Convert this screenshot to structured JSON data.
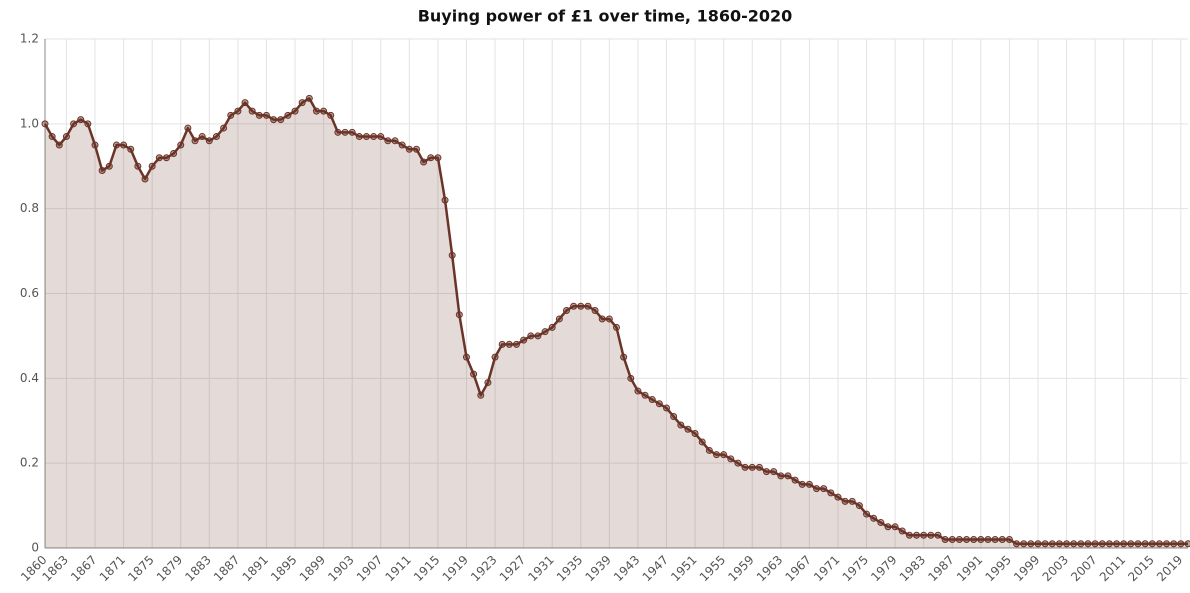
{
  "chart_data": {
    "type": "area",
    "title": "Buying power of £1 over time, 1860-2020",
    "x": [
      1860,
      1861,
      1862,
      1863,
      1864,
      1865,
      1866,
      1867,
      1868,
      1869,
      1870,
      1871,
      1872,
      1873,
      1874,
      1875,
      1876,
      1877,
      1878,
      1879,
      1880,
      1881,
      1882,
      1883,
      1884,
      1885,
      1886,
      1887,
      1888,
      1889,
      1890,
      1891,
      1892,
      1893,
      1894,
      1895,
      1896,
      1897,
      1898,
      1899,
      1900,
      1901,
      1902,
      1903,
      1904,
      1905,
      1906,
      1907,
      1908,
      1909,
      1910,
      1911,
      1912,
      1913,
      1914,
      1915,
      1916,
      1917,
      1918,
      1919,
      1920,
      1921,
      1922,
      1923,
      1924,
      1925,
      1926,
      1927,
      1928,
      1929,
      1930,
      1931,
      1932,
      1933,
      1934,
      1935,
      1936,
      1937,
      1938,
      1939,
      1940,
      1941,
      1942,
      1943,
      1944,
      1945,
      1946,
      1947,
      1948,
      1949,
      1950,
      1951,
      1952,
      1953,
      1954,
      1955,
      1956,
      1957,
      1958,
      1959,
      1960,
      1961,
      1962,
      1963,
      1964,
      1965,
      1966,
      1967,
      1968,
      1969,
      1970,
      1971,
      1972,
      1973,
      1974,
      1975,
      1976,
      1977,
      1978,
      1979,
      1980,
      1981,
      1982,
      1983,
      1984,
      1985,
      1986,
      1987,
      1988,
      1989,
      1990,
      1991,
      1992,
      1993,
      1994,
      1995,
      1996,
      1997,
      1998,
      1999,
      2000,
      2001,
      2002,
      2003,
      2004,
      2005,
      2006,
      2007,
      2008,
      2009,
      2010,
      2011,
      2012,
      2013,
      2014,
      2015,
      2016,
      2017,
      2018,
      2019,
      2020
    ],
    "values": [
      1,
      0.97,
      0.95,
      0.97,
      1,
      1.01,
      1,
      0.95,
      0.89,
      0.9,
      0.95,
      0.95,
      0.94,
      0.9,
      0.87,
      0.9,
      0.92,
      0.92,
      0.93,
      0.95,
      0.99,
      0.96,
      0.97,
      0.96,
      0.97,
      0.99,
      1.02,
      1.03,
      1.05,
      1.03,
      1.02,
      1.02,
      1.01,
      1.01,
      1.02,
      1.03,
      1.05,
      1.06,
      1.03,
      1.03,
      1.02,
      0.98,
      0.98,
      0.98,
      0.97,
      0.97,
      0.97,
      0.97,
      0.96,
      0.96,
      0.95,
      0.94,
      0.94,
      0.91,
      0.92,
      0.92,
      0.82,
      0.69,
      0.55,
      0.45,
      0.41,
      0.36,
      0.39,
      0.45,
      0.48,
      0.48,
      0.48,
      0.49,
      0.5,
      0.5,
      0.51,
      0.52,
      0.54,
      0.56,
      0.57,
      0.57,
      0.57,
      0.56,
      0.54,
      0.54,
      0.52,
      0.45,
      0.4,
      0.37,
      0.36,
      0.35,
      0.34,
      0.33,
      0.31,
      0.29,
      0.28,
      0.27,
      0.25,
      0.23,
      0.22,
      0.22,
      0.21,
      0.2,
      0.19,
      0.19,
      0.19,
      0.18,
      0.18,
      0.17,
      0.17,
      0.16,
      0.15,
      0.15,
      0.14,
      0.14,
      0.13,
      0.12,
      0.11,
      0.11,
      0.1,
      0.08,
      0.07,
      0.06,
      0.05,
      0.05,
      0.04,
      0.03,
      0.03,
      0.03,
      0.03,
      0.03,
      0.02,
      0.02,
      0.02,
      0.02,
      0.02,
      0.02,
      0.02,
      0.02,
      0.02,
      0.02,
      0.01,
      0.01,
      0.01,
      0.01,
      0.01,
      0.01,
      0.01,
      0.01,
      0.01,
      0.01,
      0.01,
      0.01,
      0.01,
      0.01,
      0.01,
      0.01,
      0.01,
      0.01,
      0.01,
      0.01,
      0.01,
      0.01,
      0.01,
      0.01,
      0.01
    ],
    "color": "#6b3428",
    "xlim": [
      1860,
      2020
    ],
    "xticks": [
      1860,
      1863,
      1867,
      1871,
      1875,
      1879,
      1883,
      1887,
      1891,
      1895,
      1899,
      1903,
      1907,
      1911,
      1915,
      1919,
      1923,
      1927,
      1931,
      1935,
      1939,
      1943,
      1947,
      1951,
      1955,
      1959,
      1963,
      1967,
      1971,
      1975,
      1979,
      1983,
      1987,
      1991,
      1995,
      1999,
      2003,
      2007,
      2011,
      2015,
      2019
    ],
    "ylim": [
      0,
      1.2
    ],
    "yticks": [
      0,
      0.2,
      0.4,
      0.6,
      0.8,
      {
        "value": 1,
        "label": "1.0"
      },
      1.2
    ],
    "grid": true
  }
}
